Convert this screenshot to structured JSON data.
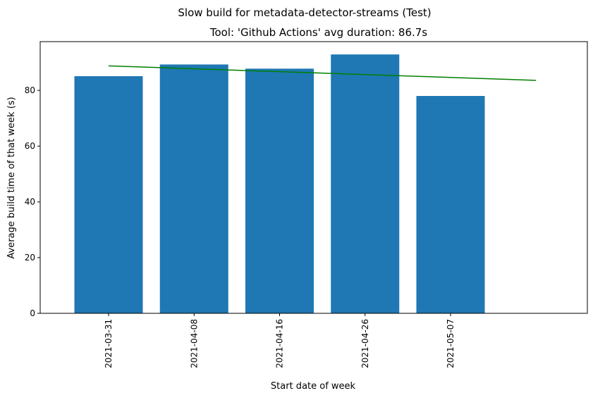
{
  "chart_data": {
    "type": "bar",
    "suptitle": "Slow build for metadata-detector-streams (Test)",
    "title": "Tool: 'Github Actions' avg duration: 86.7s",
    "xlabel": "Start date of week",
    "ylabel": "Average build time of that week (s)",
    "categories": [
      "2021-03-31",
      "2021-04-08",
      "2021-04-16",
      "2021-04-26",
      "2021-05-07"
    ],
    "values": [
      85.1,
      89.3,
      87.8,
      92.9,
      78.0
    ],
    "trend": {
      "start": 88.8,
      "end": 83.6,
      "color": "#008000"
    },
    "ylim": [
      0,
      97.5
    ],
    "yticks": [
      0,
      20,
      40,
      60,
      80
    ],
    "bar_color": "#1f77b4",
    "grid": false,
    "legend": "none"
  }
}
